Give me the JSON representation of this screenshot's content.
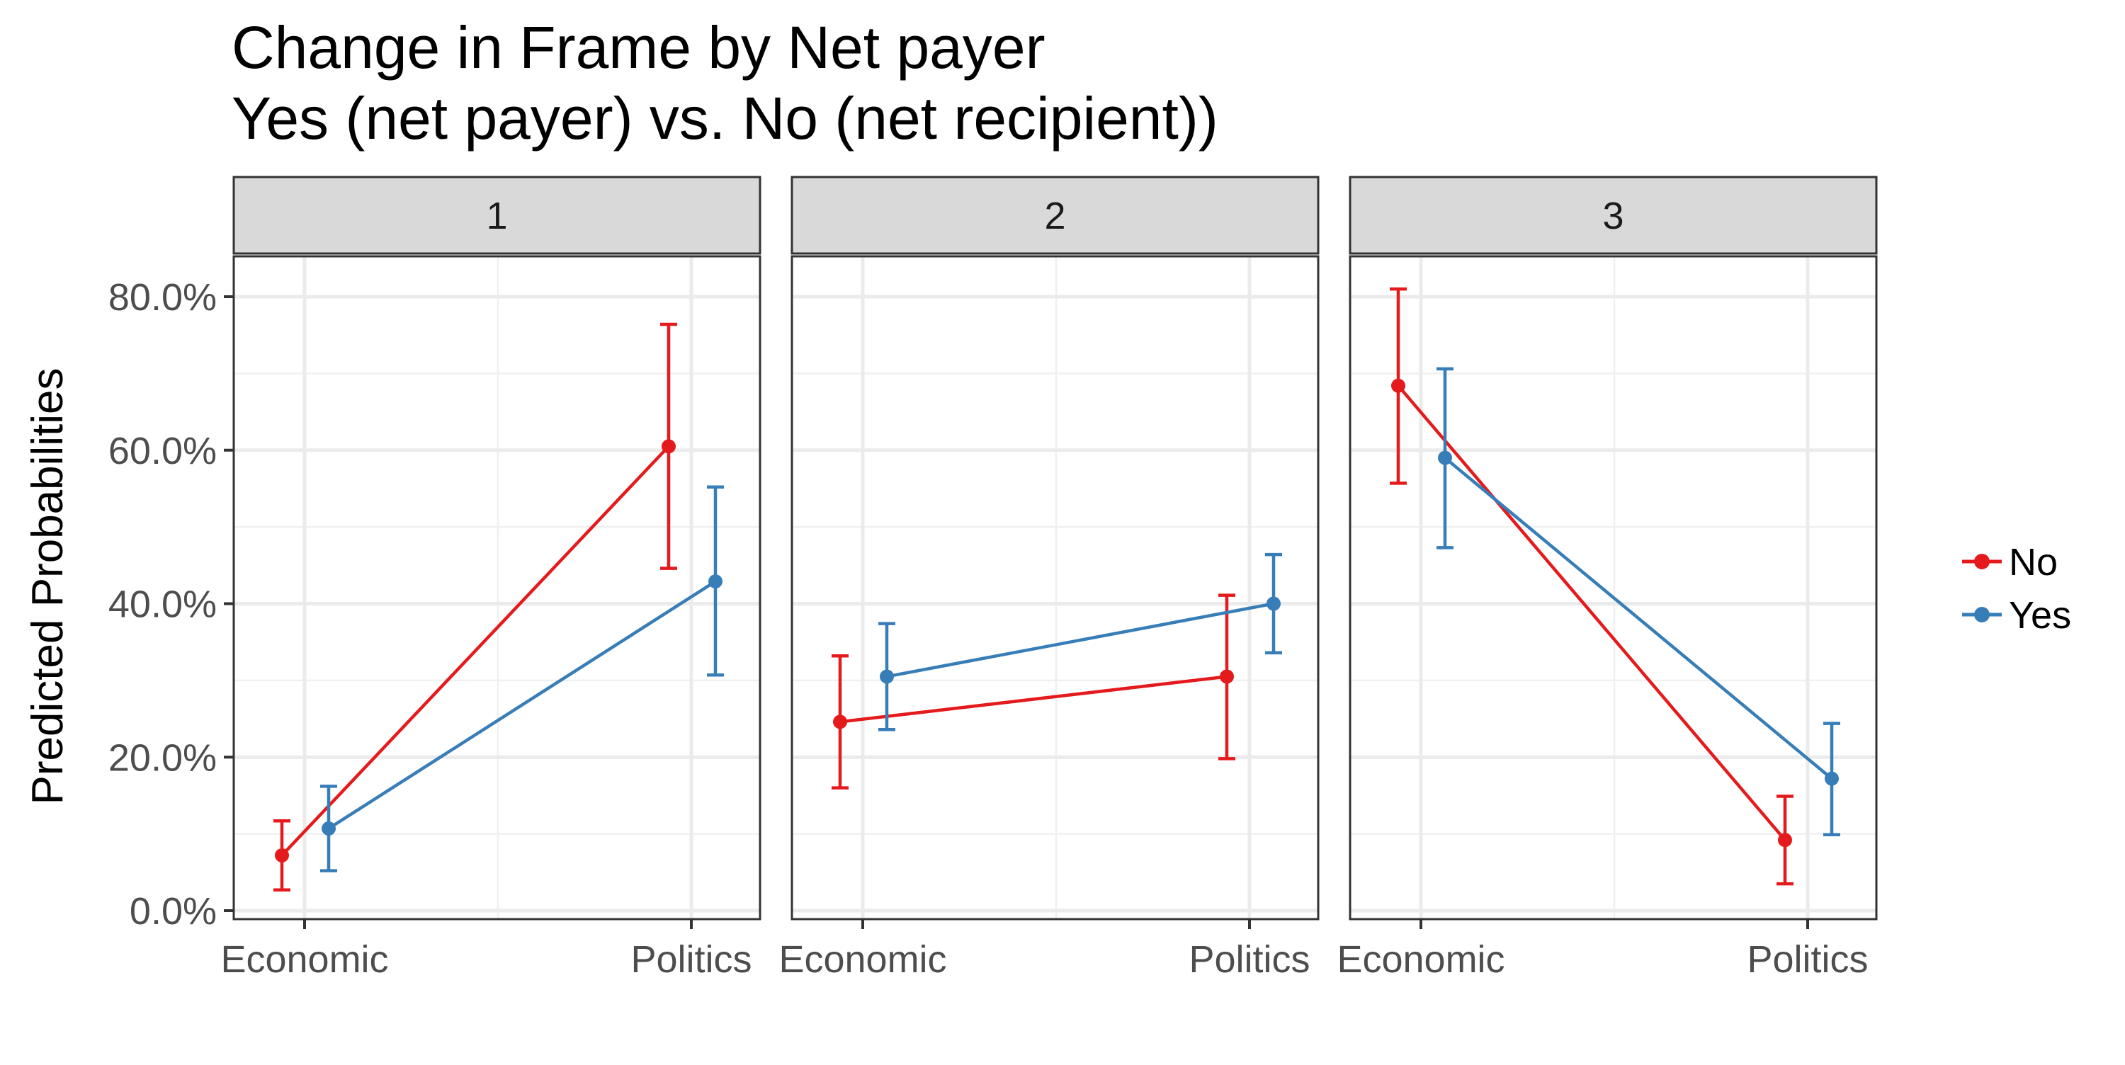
{
  "chart_data": {
    "type": "line",
    "title": "Change in Frame by Net payer\nYes (net payer) vs. No (net recipient))",
    "title_lines": [
      "Change in Frame by Net payer",
      "Yes (net payer) vs. No (net recipient))"
    ],
    "xlabel": "",
    "ylabel": "Predicted Probabilities",
    "categories": [
      "Economic",
      "Politics"
    ],
    "ylim": [
      0,
      0.8
    ],
    "yticks": [
      0.0,
      0.2,
      0.4,
      0.6,
      0.8
    ],
    "ytick_labels": [
      "0.0%",
      "20.0%",
      "40.0%",
      "60.0%",
      "80.0%"
    ],
    "grid": true,
    "error_bars": true,
    "legend": {
      "placement": "right",
      "entries": [
        "No",
        "Yes"
      ]
    },
    "colors": {
      "No": "#e41a1c",
      "Yes": "#377eb8"
    },
    "panels": [
      {
        "label": "1",
        "series": [
          {
            "name": "No",
            "values": [
              0.072,
              0.605
            ],
            "lower": [
              0.027,
              0.446
            ],
            "upper": [
              0.117,
              0.764
            ]
          },
          {
            "name": "Yes",
            "values": [
              0.107,
              0.429
            ],
            "lower": [
              0.052,
              0.307
            ],
            "upper": [
              0.162,
              0.552
            ]
          }
        ]
      },
      {
        "label": "2",
        "series": [
          {
            "name": "No",
            "values": [
              0.246,
              0.305
            ],
            "lower": [
              0.16,
              0.198
            ],
            "upper": [
              0.332,
              0.411
            ]
          },
          {
            "name": "Yes",
            "values": [
              0.305,
              0.4
            ],
            "lower": [
              0.236,
              0.336
            ],
            "upper": [
              0.374,
              0.464
            ]
          }
        ]
      },
      {
        "label": "3",
        "series": [
          {
            "name": "No",
            "values": [
              0.684,
              0.092
            ],
            "lower": [
              0.557,
              0.035
            ],
            "upper": [
              0.81,
              0.149
            ]
          },
          {
            "name": "Yes",
            "values": [
              0.59,
              0.172
            ],
            "lower": [
              0.473,
              0.099
            ],
            "upper": [
              0.706,
              0.244
            ]
          }
        ]
      }
    ]
  }
}
